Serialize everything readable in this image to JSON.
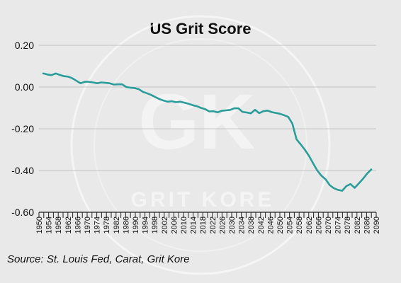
{
  "chart_data": {
    "type": "line",
    "title": "US Grit Score",
    "source": "Source: St. Louis Fed, Carat, Grit Kore",
    "watermark": {
      "monogram": "GK",
      "text": "GRIT KORE"
    },
    "xlabel": "",
    "ylabel": "",
    "ylim": [
      -0.6,
      0.2
    ],
    "yticks": [
      0.2,
      0.0,
      -0.2,
      -0.4,
      -0.6
    ],
    "ytick_labels": [
      "0.20",
      "0.00",
      "-0.20",
      "-0.40",
      "-0.60"
    ],
    "xtick_labels": [
      "1950",
      "1952",
      "1954",
      "1956",
      "1958",
      "1960",
      "1962",
      "1964",
      "1966",
      "1968",
      "1970",
      "1972",
      "1974",
      "1976",
      "1978",
      "1980",
      "1982",
      "1984",
      "1986",
      "1988",
      "1990",
      "1992",
      "1994",
      "1996",
      "1998",
      "2000",
      "2002",
      "2004",
      "2006",
      "2008",
      "2010",
      "2012",
      "2014",
      "2016",
      "2018",
      "2020",
      "2022",
      "2024",
      "2026",
      "2028",
      "2030",
      "2032",
      "2034",
      "2036",
      "2038",
      "2040",
      "2042",
      "2044",
      "2046",
      "2048",
      "2050",
      "2052",
      "2054",
      "2056",
      "2058",
      "2060",
      "2062",
      "2064",
      "2066",
      "2068",
      "2070",
      "2072",
      "2074",
      "2076",
      "2078",
      "2080",
      "2082",
      "2084",
      "2086",
      "2088",
      "2090"
    ],
    "grid": true,
    "line_color": "#2a9d9a",
    "series": [
      {
        "values": [
          0.065,
          0.06,
          0.057,
          0.065,
          0.058,
          0.052,
          0.05,
          0.042,
          0.03,
          0.018,
          0.025,
          0.025,
          0.022,
          0.018,
          0.022,
          0.02,
          0.018,
          0.012,
          0.013,
          0.013,
          0.0,
          -0.003,
          -0.005,
          -0.01,
          -0.023,
          -0.03,
          -0.038,
          -0.048,
          -0.058,
          -0.065,
          -0.07,
          -0.068,
          -0.073,
          -0.07,
          -0.075,
          -0.08,
          -0.087,
          -0.092,
          -0.1,
          -0.106,
          -0.117,
          -0.116,
          -0.121,
          -0.114,
          -0.112,
          -0.11,
          -0.102,
          -0.102,
          -0.119,
          -0.122,
          -0.126,
          -0.109,
          -0.125,
          -0.116,
          -0.113,
          -0.12,
          -0.124,
          -0.128,
          -0.135,
          -0.143,
          -0.175,
          -0.25,
          -0.275,
          -0.3,
          -0.33,
          -0.365,
          -0.4,
          -0.425,
          -0.442,
          -0.47,
          -0.485,
          -0.493,
          -0.497,
          -0.475,
          -0.465,
          -0.483,
          -0.462,
          -0.44,
          -0.415,
          -0.395
        ]
      }
    ]
  }
}
